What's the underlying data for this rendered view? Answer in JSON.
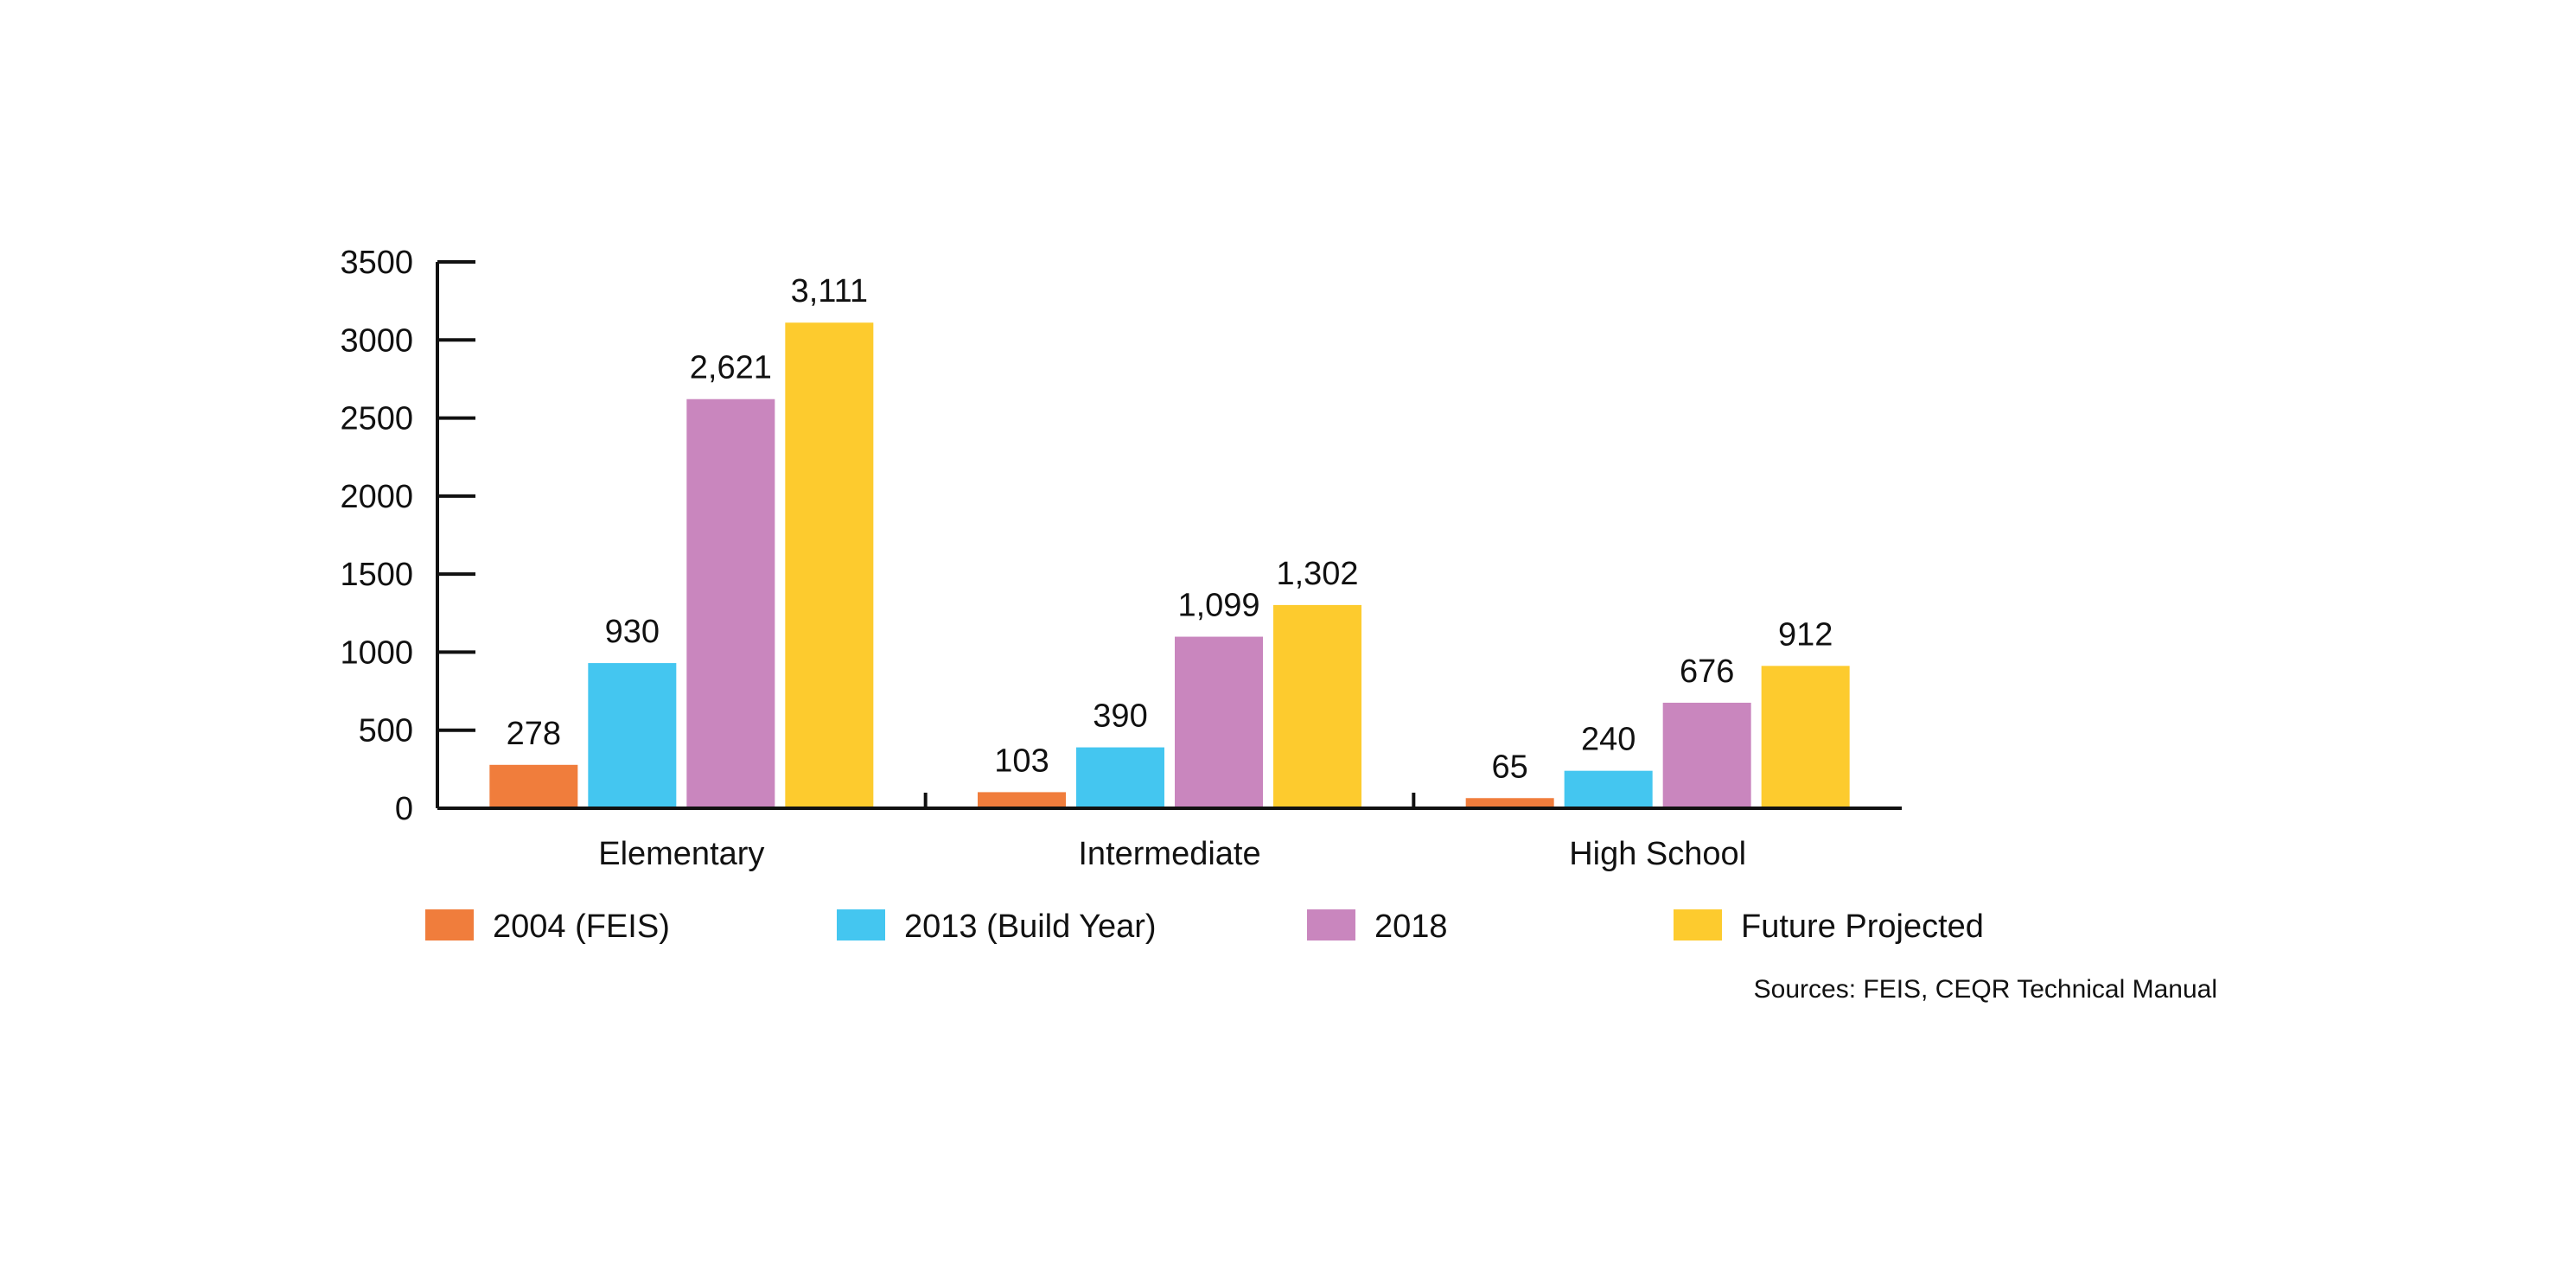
{
  "chart_data": {
    "type": "bar",
    "categories": [
      "Elementary",
      "Intermediate",
      "High School"
    ],
    "series": [
      {
        "name": "2004 (FEIS)",
        "values": [
          278,
          103,
          65
        ],
        "labels": [
          "278",
          "103",
          "65"
        ],
        "color": "#F07D3C"
      },
      {
        "name": "2013 (Build Year)",
        "values": [
          930,
          390,
          240
        ],
        "labels": [
          "930",
          "390",
          "240"
        ],
        "color": "#44C6F0"
      },
      {
        "name": "2018",
        "values": [
          2621,
          1099,
          676
        ],
        "labels": [
          "2,621",
          "1,099",
          "676"
        ],
        "color": "#C986BE"
      },
      {
        "name": "Future Projected",
        "values": [
          3111,
          1302,
          912
        ],
        "labels": [
          "3,111",
          "1,302",
          "912"
        ],
        "color": "#FDCB2E"
      }
    ],
    "yticks": [
      "0",
      "500",
      "1000",
      "1500",
      "2000",
      "2500",
      "3000",
      "3500"
    ],
    "ylim": [
      0,
      3500
    ],
    "legend_position": "bottom",
    "source": "Sources: FEIS, CEQR Technical Manual"
  }
}
